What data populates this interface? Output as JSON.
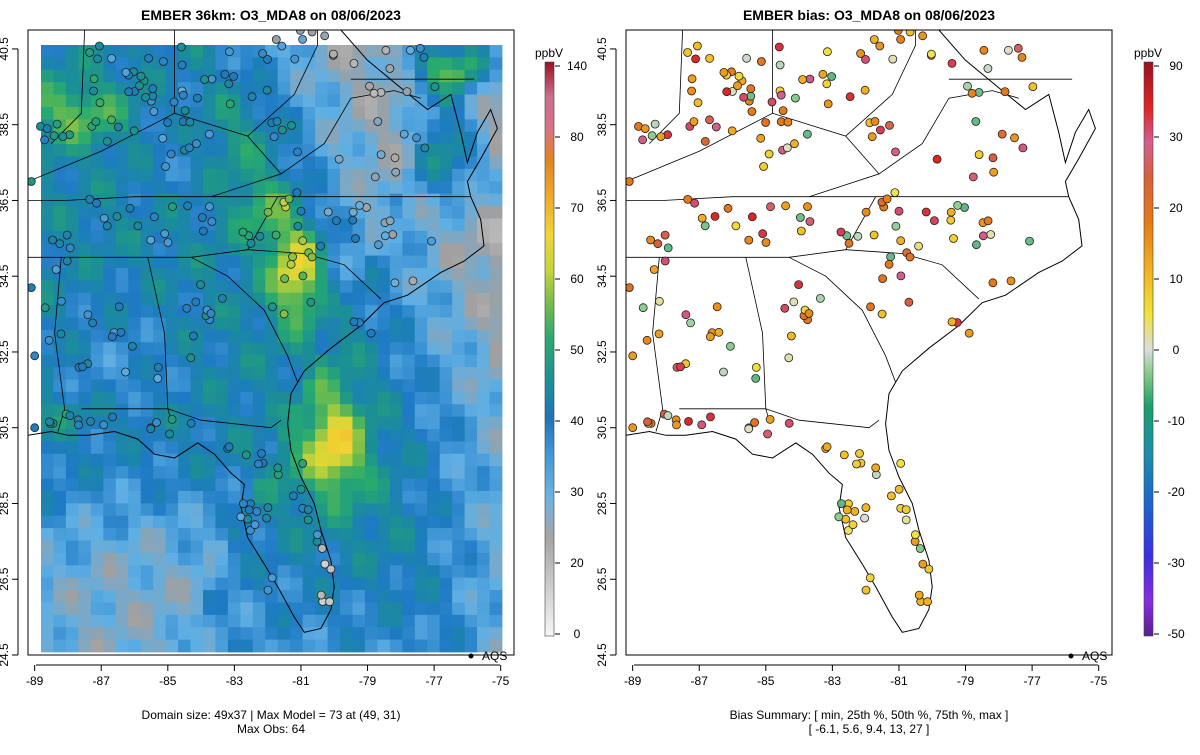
{
  "chart_data": [
    {
      "type": "heatmap",
      "title": "EMBER 36km: O3_MDA8 on 08/06/2023",
      "units": "ppbV",
      "x_ticks": [
        "-89",
        "-87",
        "-85",
        "-83",
        "-81",
        "-79",
        "-77",
        "-75"
      ],
      "y_ticks": [
        "24.5",
        "26.5",
        "28.5",
        "30.5",
        "32.5",
        "34.5",
        "36.5",
        "38.5",
        "40.5"
      ],
      "xlim": [
        -89.2,
        -74.6
      ],
      "ylim": [
        24.5,
        41.0
      ],
      "colorbar_ticks": [
        "0",
        "20",
        "30",
        "40",
        "50",
        "60",
        "70",
        "80",
        "140"
      ],
      "legend_label": "AQS",
      "caption_line1": "Domain size: 49x37 | Max Model = 73 at (49, 31)",
      "caption_line2": "Max Obs: 64",
      "domain_size": [
        49,
        37
      ],
      "max_model": 73,
      "max_obs": 64
    },
    {
      "type": "scatter",
      "title": "EMBER bias: O3_MDA8 on 08/06/2023",
      "units": "ppbV",
      "x_ticks": [
        "-89",
        "-87",
        "-85",
        "-83",
        "-81",
        "-79",
        "-77",
        "-75"
      ],
      "y_ticks": [
        "24.5",
        "26.5",
        "28.5",
        "30.5",
        "32.5",
        "34.5",
        "36.5",
        "38.5",
        "40.5"
      ],
      "xlim": [
        -89.2,
        -74.6
      ],
      "ylim": [
        24.5,
        41.0
      ],
      "colorbar_ticks": [
        "-50",
        "-30",
        "-20",
        "-10",
        "0",
        "10",
        "20",
        "30",
        "90"
      ],
      "legend_label": "AQS",
      "caption_line1": "Bias Summary: [ min, 25th %, 50th %, 75th %, max ]",
      "caption_line2": "[ -6.1,   5.6,   9.4,   13,   27 ]",
      "bias_summary": {
        "min": -6.1,
        "p25": 5.6,
        "p50": 9.4,
        "p75": 13,
        "max": 27
      }
    }
  ],
  "colors": {
    "o3_scale": [
      "#f7f7f7",
      "#c6c6c6",
      "#9a9a9a",
      "#5aaee6",
      "#1e7ac4",
      "#1e9a88",
      "#4fb04f",
      "#a8cc3c",
      "#f2df38",
      "#f0a02a",
      "#dc6d18",
      "#cc7088",
      "#9a1020"
    ],
    "bias_scale": [
      "#6a1fa0",
      "#8a2be2",
      "#2a2ae0",
      "#1e6fd6",
      "#1aa07a",
      "#8ccc8c",
      "#dddddd",
      "#f5e040",
      "#f08a10",
      "#e06020",
      "#d05080",
      "#e02020",
      "#9a1020"
    ]
  }
}
